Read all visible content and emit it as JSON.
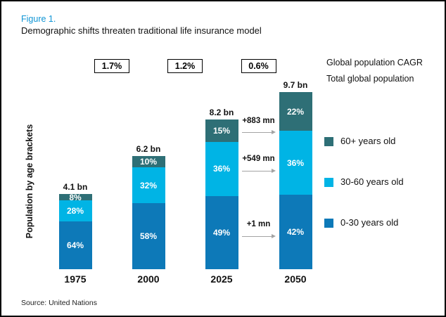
{
  "figure": {
    "label": "Figure 1.",
    "title": "Demographic shifts threaten traditional life insurance model",
    "source": "Source: United Nations"
  },
  "legend_headers": {
    "cagr": "Global population CAGR",
    "total": "Total global population"
  },
  "chart_data": {
    "type": "bar",
    "stacked": true,
    "title": "Demographic shifts threaten traditional life insurance model",
    "ylabel": "Population by age brackets",
    "categories": [
      "1975",
      "2000",
      "2025",
      "2050"
    ],
    "totals_bn": [
      4.1,
      6.2,
      8.2,
      9.7
    ],
    "total_labels": [
      "4.1 bn",
      "6.2 bn",
      "8.2 bn",
      "9.7 bn"
    ],
    "series": [
      {
        "name": "0-30 years old",
        "color": "#0d79b8",
        "values_pct": [
          64,
          58,
          49,
          42
        ]
      },
      {
        "name": "30-60 years old",
        "color": "#00b4e5",
        "values_pct": [
          28,
          32,
          36,
          36
        ]
      },
      {
        "name": "60+ years old",
        "color": "#2e6f76",
        "values_pct": [
          8,
          10,
          15,
          22
        ]
      }
    ],
    "cagr_boxes": [
      "1.7%",
      "1.2%",
      "0.6%"
    ],
    "annotations": [
      {
        "label": "+883 mn",
        "series": "60+ years old"
      },
      {
        "label": "+549 mn",
        "series": "30-60 years old"
      },
      {
        "label": "+1 mn",
        "series": "0-30 years old"
      }
    ],
    "legend": [
      "60+ years old",
      "30-60 years old",
      "0-30 years old"
    ],
    "legend_position": "right",
    "grid": false
  },
  "colors": {
    "accent_blue": "#1095d5",
    "arrow_gray": "#a3a3a3"
  }
}
